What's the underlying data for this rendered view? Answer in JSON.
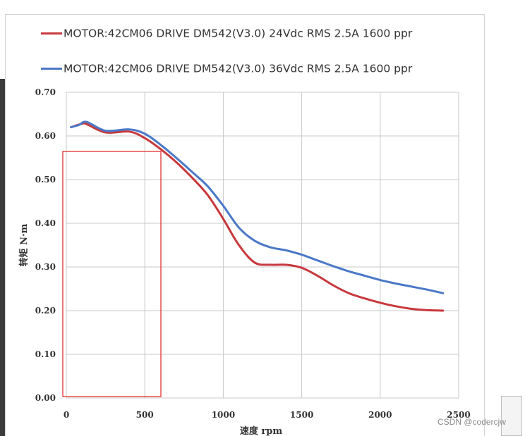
{
  "chart_data": {
    "type": "line",
    "title": "",
    "xlabel": "速度 rpm",
    "ylabel": "转矩 N·m",
    "xlim": [
      0,
      2500
    ],
    "ylim": [
      0,
      0.7
    ],
    "grid": true,
    "legend_position": "top",
    "x_ticks": [
      "0",
      "500",
      "1000",
      "1500",
      "2000",
      "2500"
    ],
    "y_ticks": [
      "0.00",
      "0.10",
      "0.20",
      "0.30",
      "0.40",
      "0.50",
      "0.60",
      "0.70"
    ],
    "series": [
      {
        "name": "MOTOR:42CM06 DRIVE DM542(V3.0)  24Vdc RMS 2.5A 1600 ppr",
        "color": "#c8383c",
        "x": [
          30,
          100,
          130,
          250,
          400,
          500,
          600,
          700,
          800,
          900,
          1000,
          1100,
          1200,
          1300,
          1400,
          1500,
          1600,
          1700,
          1800,
          1900,
          2000,
          2100,
          2200,
          2300,
          2400
        ],
        "y": [
          0.62,
          0.628,
          0.627,
          0.608,
          0.61,
          0.595,
          0.57,
          0.54,
          0.505,
          0.465,
          0.41,
          0.35,
          0.31,
          0.305,
          0.305,
          0.298,
          0.28,
          0.258,
          0.24,
          0.228,
          0.218,
          0.21,
          0.204,
          0.201,
          0.2
        ]
      },
      {
        "name": "MOTOR:42CM06 DRIVE DM542(V3.0)  36Vdc RMS 2.5A 1600 ppr",
        "color": "#4a78c8",
        "x": [
          30,
          80,
          130,
          250,
          400,
          500,
          600,
          700,
          800,
          900,
          1000,
          1100,
          1200,
          1300,
          1400,
          1500,
          1600,
          1700,
          1800,
          1900,
          2000,
          2100,
          2200,
          2300,
          2400
        ],
        "y": [
          0.62,
          0.625,
          0.632,
          0.612,
          0.615,
          0.605,
          0.58,
          0.55,
          0.518,
          0.485,
          0.44,
          0.39,
          0.36,
          0.345,
          0.338,
          0.328,
          0.315,
          0.302,
          0.29,
          0.28,
          0.27,
          0.262,
          0.255,
          0.248,
          0.24
        ]
      }
    ]
  },
  "watermark": "CSDN @codercjw"
}
